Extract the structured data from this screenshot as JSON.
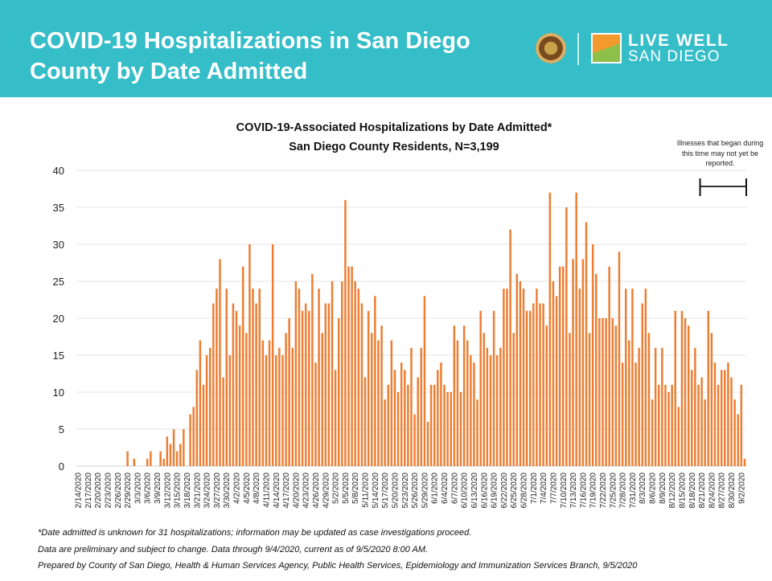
{
  "header": {
    "title_line1": "COVID-19 Hospitalizations in San Diego",
    "title_line2": "County by Date Admitted",
    "logo_text_line1": "LIVE WELL",
    "logo_text_line2": "SAN DIEGO"
  },
  "chart_data": {
    "type": "bar",
    "title": "COVID-19-Associated Hospitalizations by Date Admitted*",
    "subtitle": "San Diego County Residents, N=3,199",
    "xlabel": "",
    "ylabel": "",
    "ylim": [
      0,
      40
    ],
    "y_ticks": [
      "0",
      "5",
      "10",
      "15",
      "20",
      "25",
      "30",
      "35",
      "40"
    ],
    "grid": "horizontal",
    "bar_color": "#ed7d31",
    "x_tick_labels": [
      "2/14/2020",
      "2/17/2020",
      "2/20/2020",
      "2/23/2020",
      "2/26/2020",
      "2/29/2020",
      "3/3/2020",
      "3/6/2020",
      "3/9/2020",
      "3/12/2020",
      "3/15/2020",
      "3/18/2020",
      "3/21/2020",
      "3/24/2020",
      "3/27/2020",
      "3/30/2020",
      "4/2/2020",
      "4/5/2020",
      "4/8/2020",
      "4/11/2020",
      "4/14/2020",
      "4/17/2020",
      "4/20/2020",
      "4/23/2020",
      "4/26/2020",
      "4/29/2020",
      "5/2/2020",
      "5/5/2020",
      "5/8/2020",
      "5/11/2020",
      "5/14/2020",
      "5/17/2020",
      "5/20/2020",
      "5/23/2020",
      "5/26/2020",
      "5/29/2020",
      "6/1/2020",
      "6/4/2020",
      "6/7/2020",
      "6/10/2020",
      "6/13/2020",
      "6/16/2020",
      "6/19/2020",
      "6/22/2020",
      "6/25/2020",
      "6/28/2020",
      "7/1/2020",
      "7/4/2020",
      "7/7/2020",
      "7/10/2020",
      "7/13/2020",
      "7/16/2020",
      "7/19/2020",
      "7/22/2020",
      "7/25/2020",
      "7/28/2020",
      "7/31/2020",
      "8/3/2020",
      "8/6/2020",
      "8/9/2020",
      "8/12/2020",
      "8/15/2020",
      "8/18/2020",
      "8/21/2020",
      "8/24/2020",
      "8/27/2020",
      "8/30/2020",
      "9/2/2020"
    ],
    "x_tick_every_n_days": 3,
    "values": [
      0,
      0,
      0,
      0,
      0,
      0,
      0,
      0,
      0,
      0,
      0,
      0,
      0,
      0,
      0,
      2,
      0,
      1,
      0,
      0,
      0,
      1,
      2,
      0,
      0,
      2,
      1,
      4,
      3,
      5,
      2,
      3,
      5,
      0,
      7,
      8,
      13,
      17,
      11,
      15,
      16,
      22,
      24,
      28,
      12,
      24,
      15,
      22,
      21,
      19,
      27,
      18,
      30,
      24,
      22,
      24,
      17,
      15,
      17,
      30,
      15,
      16,
      15,
      18,
      20,
      16,
      25,
      24,
      21,
      22,
      21,
      26,
      14,
      24,
      18,
      22,
      22,
      25,
      13,
      20,
      25,
      36,
      27,
      27,
      25,
      24,
      22,
      12,
      21,
      18,
      23,
      17,
      19,
      9,
      11,
      17,
      13,
      10,
      14,
      13,
      11,
      16,
      7,
      12,
      16,
      23,
      6,
      11,
      11,
      13,
      14,
      11,
      10,
      10,
      19,
      17,
      10,
      19,
      17,
      15,
      14,
      9,
      21,
      18,
      16,
      15,
      21,
      15,
      16,
      24,
      24,
      32,
      18,
      26,
      25,
      24,
      21,
      21,
      22,
      24,
      22,
      22,
      19,
      37,
      25,
      23,
      27,
      27,
      35,
      18,
      28,
      37,
      24,
      28,
      33,
      18,
      30,
      26,
      20,
      20,
      20,
      27,
      20,
      19,
      29,
      14,
      24,
      17,
      24,
      14,
      16,
      22,
      24,
      18,
      9,
      16,
      11,
      16,
      11,
      10,
      11,
      21,
      8,
      21,
      20,
      19,
      13,
      16,
      11,
      12,
      9,
      21,
      18,
      14,
      11,
      13,
      13,
      14,
      12,
      9,
      7,
      11,
      1
    ],
    "annotation": "Illnesses that began during this time may not yet be reported.",
    "annotation_span_days": 14
  },
  "footer": {
    "line1": "*Date admitted is unknown for 31 hospitalizations; information may be updated as case investigations proceed.",
    "line2": "Data are preliminary and subject to change. Data through 9/4/2020, current as of 9/5/2020 8:00 AM.",
    "line3": "Prepared by County of San Diego, Health & Human Services Agency, Public Health Services, Epidemiology and Immunization Services Branch, 9/5/2020"
  }
}
